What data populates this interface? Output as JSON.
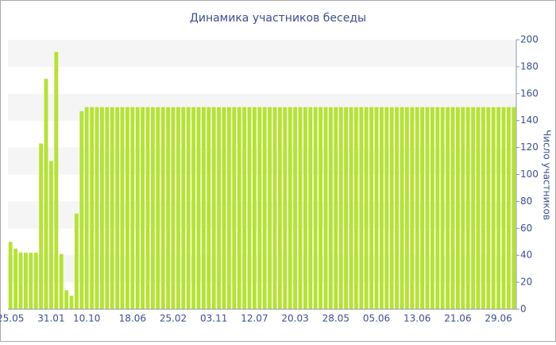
{
  "chart_data": {
    "type": "bar",
    "title": "Динамика участников беседы",
    "y_label": "Число участников",
    "categories": [
      "25.05",
      null,
      null,
      null,
      null,
      null,
      null,
      null,
      "31.01",
      null,
      null,
      null,
      null,
      null,
      null,
      "10.10",
      null,
      null,
      null,
      null,
      null,
      null,
      null,
      null,
      "18.06",
      null,
      null,
      null,
      null,
      null,
      null,
      null,
      "25.02",
      null,
      null,
      null,
      null,
      null,
      null,
      null,
      "03.11",
      null,
      null,
      null,
      null,
      null,
      null,
      null,
      "12.07",
      null,
      null,
      null,
      null,
      null,
      null,
      null,
      "20.03",
      null,
      null,
      null,
      null,
      null,
      null,
      null,
      "28.05",
      null,
      null,
      null,
      null,
      null,
      null,
      null,
      "05.06",
      null,
      null,
      null,
      null,
      null,
      null,
      null,
      "13.06",
      null,
      null,
      null,
      null,
      null,
      null,
      null,
      "21.06",
      null,
      null,
      null,
      null,
      null,
      null,
      null,
      "29.06",
      null,
      null,
      null
    ],
    "values": [
      50,
      45,
      42,
      42,
      42,
      42,
      123,
      171,
      110,
      191,
      41,
      14,
      10,
      71,
      147,
      150,
      150,
      150,
      150,
      150,
      150,
      150,
      150,
      150,
      150,
      150,
      150,
      150,
      150,
      150,
      150,
      150,
      150,
      150,
      150,
      150,
      150,
      150,
      150,
      150,
      150,
      150,
      150,
      150,
      150,
      150,
      150,
      150,
      150,
      150,
      150,
      150,
      150,
      150,
      150,
      150,
      150,
      150,
      150,
      150,
      150,
      150,
      150,
      150,
      150,
      150,
      150,
      150,
      150,
      150,
      150,
      150,
      150,
      150,
      150,
      150,
      150,
      150,
      150,
      150,
      150,
      150,
      150,
      150,
      150,
      150,
      150,
      150,
      150,
      150,
      150,
      150,
      150,
      150,
      150,
      150,
      150,
      150,
      150,
      150
    ],
    "color": "#b5e332",
    "ylim": [
      0,
      200
    ],
    "yticks": [
      0,
      20,
      40,
      60,
      80,
      100,
      120,
      140,
      160,
      180,
      200
    ],
    "grid": "bands",
    "y_axis_side": "right"
  }
}
